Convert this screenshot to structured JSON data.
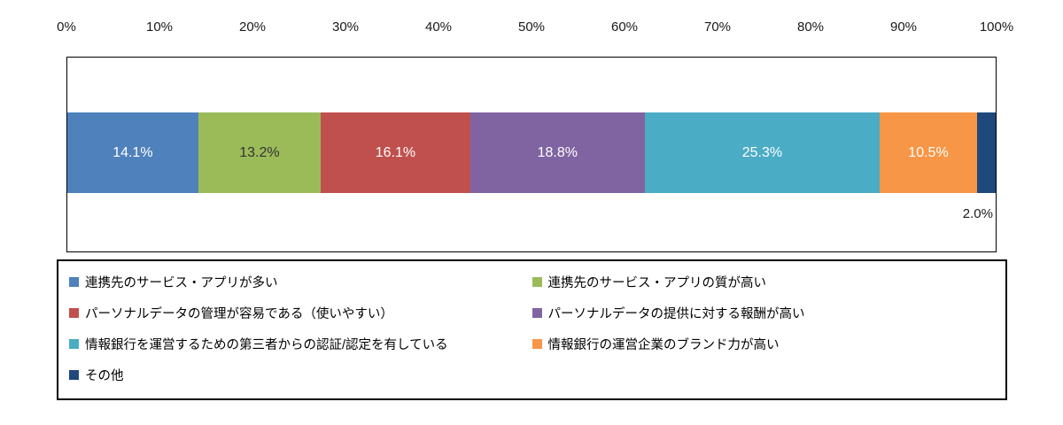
{
  "chart_data": {
    "type": "bar",
    "subtype": "horizontal-stacked-100",
    "title": "",
    "xlabel": "",
    "ylabel": "",
    "xlim": [
      0,
      100
    ],
    "grid": false,
    "legend_position": "bottom",
    "x_ticks": [
      "0%",
      "10%",
      "20%",
      "30%",
      "40%",
      "50%",
      "60%",
      "70%",
      "80%",
      "90%",
      "100%"
    ],
    "series": [
      {
        "name": "連携先のサービス・アプリが多い",
        "value": 14.1,
        "label": "14.1%",
        "color": "#4F81BD",
        "label_color": "#ffffff",
        "label_outside": false
      },
      {
        "name": "連携先のサービス・アプリの質が高い",
        "value": 13.2,
        "label": "13.2%",
        "color": "#9BBB59",
        "label_color": "#333333",
        "label_outside": false
      },
      {
        "name": "パーソナルデータの管理が容易である（使いやすい）",
        "value": 16.1,
        "label": "16.1%",
        "color": "#C0504D",
        "label_color": "#ffffff",
        "label_outside": false
      },
      {
        "name": "パーソナルデータの提供に対する報酬が高い",
        "value": 18.8,
        "label": "18.8%",
        "color": "#8064A2",
        "label_color": "#ffffff",
        "label_outside": false
      },
      {
        "name": "情報銀行を運営するための第三者からの認証/認定を有している",
        "value": 25.3,
        "label": "25.3%",
        "color": "#4BACC6",
        "label_color": "#ffffff",
        "label_outside": false
      },
      {
        "name": "情報銀行の運営企業のブランド力が高い",
        "value": 10.5,
        "label": "10.5%",
        "color": "#F79646",
        "label_color": "#ffffff",
        "label_outside": false
      },
      {
        "name": "その他",
        "value": 2.0,
        "label": "2.0%",
        "color": "#1F497D",
        "label_color": "#1a1a1a",
        "label_outside": true
      }
    ],
    "outside_label": "2.0%"
  }
}
